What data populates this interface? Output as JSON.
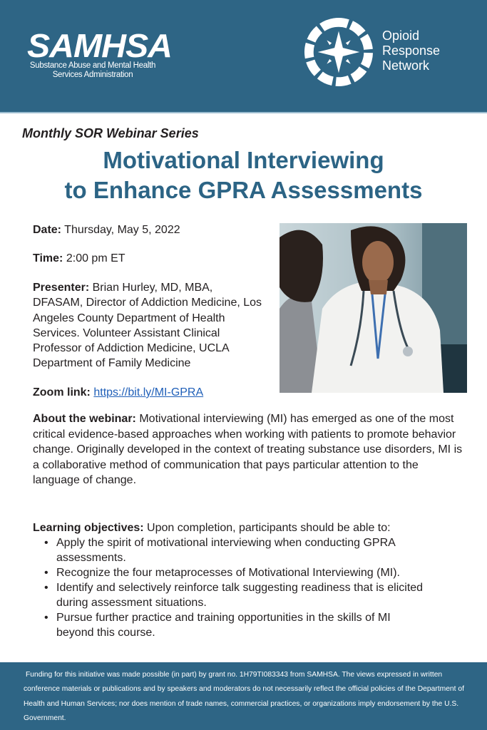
{
  "header": {
    "samhsa_logo": "SAMHSA",
    "samhsa_subtitle": "Substance Abuse and Mental Health Services Administration",
    "orn_name": [
      "Opioid",
      "Response",
      "Network"
    ]
  },
  "series": "Monthly SOR Webinar Series",
  "title": [
    "Motivational Interviewing",
    "to Enhance GPRA Assessments"
  ],
  "details": {
    "date_label": "Date:",
    "date": "Thursday, May 5, 2022",
    "time_label": "Time:",
    "time": "2:00 pm ET",
    "presenter_label": "Presenter:",
    "presenter": "Brian Hurley, MD, MBA, DFASAM, Director of Addiction Medicine, Los Angeles County Department of Health Services. Volunteer Assistant Clinical Professor of Addiction Medicine, UCLA Department of Family Medicine",
    "zoom_label": "Zoom link:",
    "zoom_link": "https://bit.ly/MI-GPRA"
  },
  "about": {
    "label": "About the webinar:",
    "text": "Motivational interviewing (MI) has emerged as one of the most critical evidence-based approaches when working with patients to promote behavior change. Originally developed in the context of treating substance use disorders, MI is a collaborative method of communication that pays particular attention to the language of change."
  },
  "learning": {
    "label": "Learning objectives:",
    "intro": "Upon completion, participants should be able to:",
    "items": [
      "Apply the spirit of motivational interviewing when conducting GPRA assessments.",
      "Recognize the four metaprocesses of Motivational Interviewing (MI).",
      "Identify and selectively reinforce talk suggesting readiness that is elicited during assessment situations.",
      "Pursue further practice and training opportunities in the skills of MI beyond this course."
    ]
  },
  "footer": "Funding for this initiative was made possible (in part) by grant no. 1H79TI083343 from SAMHSA. The views expressed in written conference materials or publications and by speakers and moderators do not necessarily reflect the official policies of the Department of Health and Human Services; nor does mention of trade names, commercial practices, or organizations imply endorsement by the U.S. Government.",
  "colors": {
    "brand_blue": "#2e6585",
    "title_blue": "#2c6485",
    "link": "#1f5fb8"
  }
}
